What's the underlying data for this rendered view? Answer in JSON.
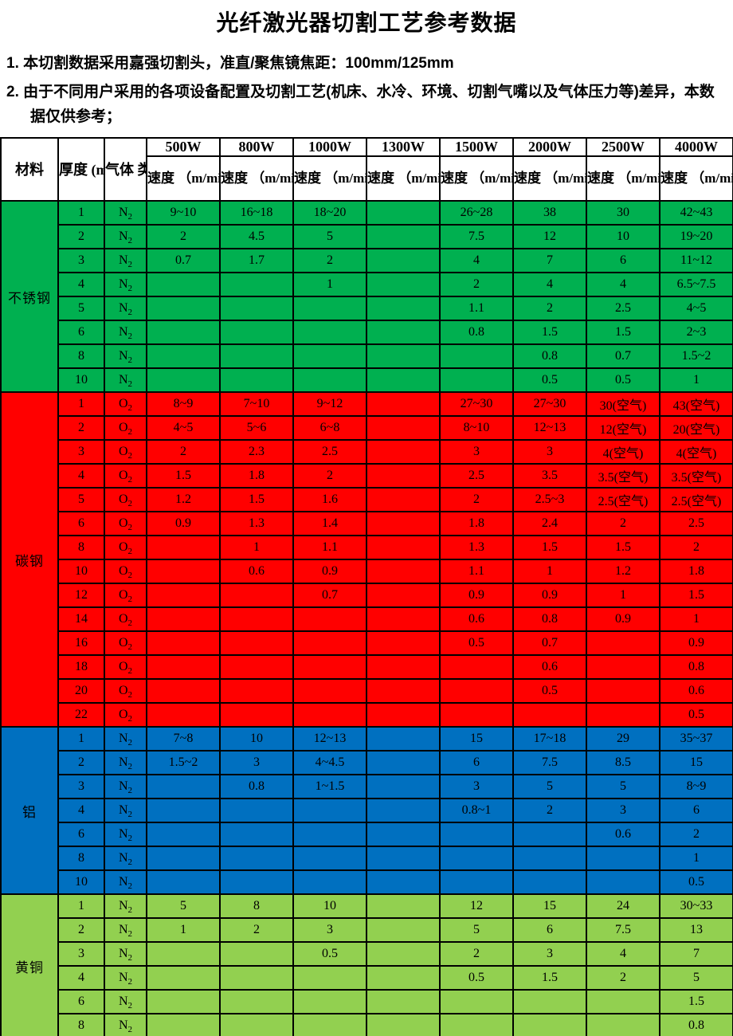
{
  "title": "光纤激光器切割工艺参考数据",
  "notes": [
    "1. 本切割数据采用嘉强切割头，准直/聚焦镜焦距：100mm/125mm",
    "2. 由于不同用户采用的各项设备配置及切割工艺(机床、水冷、环境、切割气嘴以及气体压力等)差异，本数据仅供参考；"
  ],
  "table": {
    "header": {
      "material": "材料",
      "thickness": "厚度\n(mm)",
      "gas": "气体\n类型",
      "powers": [
        "500W",
        "800W",
        "1000W",
        "1300W",
        "1500W",
        "2000W",
        "2500W",
        "4000W"
      ],
      "speed_label": "速度\n（m/min)"
    },
    "sections": [
      {
        "material": "不锈钢",
        "color": "#00B050",
        "rows": [
          {
            "t": "1",
            "g": "N2",
            "v": [
              "9~10",
              "16~18",
              "18~20",
              "",
              "26~28",
              "38",
              "30",
              "42~43"
            ]
          },
          {
            "t": "2",
            "g": "N2",
            "v": [
              "2",
              "4.5",
              "5",
              "",
              "7.5",
              "12",
              "10",
              "19~20"
            ]
          },
          {
            "t": "3",
            "g": "N2",
            "v": [
              "0.7",
              "1.7",
              "2",
              "",
              "4",
              "7",
              "6",
              "11~12"
            ]
          },
          {
            "t": "4",
            "g": "N2",
            "v": [
              "",
              "",
              "1",
              "",
              "2",
              "4",
              "4",
              "6.5~7.5"
            ]
          },
          {
            "t": "5",
            "g": "N2",
            "v": [
              "",
              "",
              "",
              "",
              "1.1",
              "2",
              "2.5",
              "4~5"
            ]
          },
          {
            "t": "6",
            "g": "N2",
            "v": [
              "",
              "",
              "",
              "",
              "0.8",
              "1.5",
              "1.5",
              "2~3"
            ]
          },
          {
            "t": "8",
            "g": "N2",
            "v": [
              "",
              "",
              "",
              "",
              "",
              "0.8",
              "0.7",
              "1.5~2"
            ]
          },
          {
            "t": "10",
            "g": "N2",
            "v": [
              "",
              "",
              "",
              "",
              "",
              "0.5",
              "0.5",
              "1"
            ]
          }
        ]
      },
      {
        "material": "碳钢",
        "color": "#FF0000",
        "rows": [
          {
            "t": "1",
            "g": "O2",
            "v": [
              "8~9",
              "7~10",
              "9~12",
              "",
              "27~30",
              "27~30",
              "30(空气)",
              "43(空气)"
            ]
          },
          {
            "t": "2",
            "g": "O2",
            "v": [
              "4~5",
              "5~6",
              "6~8",
              "",
              "8~10",
              "12~13",
              "12(空气)",
              "20(空气)"
            ]
          },
          {
            "t": "3",
            "g": "O2",
            "v": [
              "2",
              "2.3",
              "2.5",
              "",
              "3",
              "3",
              "4(空气)",
              "4(空气)"
            ]
          },
          {
            "t": "4",
            "g": "O2",
            "v": [
              "1.5",
              "1.8",
              "2",
              "",
              "2.5",
              "3.5",
              "3.5(空气)",
              "3.5(空气)"
            ]
          },
          {
            "t": "5",
            "g": "O2",
            "v": [
              "1.2",
              "1.5",
              "1.6",
              "",
              "2",
              "2.5~3",
              "2.5(空气)",
              "2.5(空气)"
            ]
          },
          {
            "t": "6",
            "g": "O2",
            "v": [
              "0.9",
              "1.3",
              "1.4",
              "",
              "1.8",
              "2.4",
              "2",
              "2.5"
            ]
          },
          {
            "t": "8",
            "g": "O2",
            "v": [
              "",
              "1",
              "1.1",
              "",
              "1.3",
              "1.5",
              "1.5",
              "2"
            ]
          },
          {
            "t": "10",
            "g": "O2",
            "v": [
              "",
              "0.6",
              "0.9",
              "",
              "1.1",
              "1",
              "1.2",
              "1.8"
            ]
          },
          {
            "t": "12",
            "g": "O2",
            "v": [
              "",
              "",
              "0.7",
              "",
              "0.9",
              "0.9",
              "1",
              "1.5"
            ]
          },
          {
            "t": "14",
            "g": "O2",
            "v": [
              "",
              "",
              "",
              "",
              "0.6",
              "0.8",
              "0.9",
              "1"
            ]
          },
          {
            "t": "16",
            "g": "O2",
            "v": [
              "",
              "",
              "",
              "",
              "0.5",
              "0.7",
              "",
              "0.9"
            ]
          },
          {
            "t": "18",
            "g": "O2",
            "v": [
              "",
              "",
              "",
              "",
              "",
              "0.6",
              "",
              "0.8"
            ]
          },
          {
            "t": "20",
            "g": "O2",
            "v": [
              "",
              "",
              "",
              "",
              "",
              "0.5",
              "",
              "0.6"
            ]
          },
          {
            "t": "22",
            "g": "O2",
            "v": [
              "",
              "",
              "",
              "",
              "",
              "",
              "",
              "0.5"
            ]
          }
        ]
      },
      {
        "material": "铝",
        "color": "#0070C0",
        "rows": [
          {
            "t": "1",
            "g": "N2",
            "v": [
              "7~8",
              "10",
              "12~13",
              "",
              "15",
              "17~18",
              "29",
              "35~37"
            ]
          },
          {
            "t": "2",
            "g": "N2",
            "v": [
              "1.5~2",
              "3",
              "4~4.5",
              "",
              "6",
              "7.5",
              "8.5",
              "15"
            ]
          },
          {
            "t": "3",
            "g": "N2",
            "v": [
              "",
              "0.8",
              "1~1.5",
              "",
              "3",
              "5",
              "5",
              "8~9"
            ]
          },
          {
            "t": "4",
            "g": "N2",
            "v": [
              "",
              "",
              "",
              "",
              "0.8~1",
              "2",
              "3",
              "6"
            ]
          },
          {
            "t": "6",
            "g": "N2",
            "v": [
              "",
              "",
              "",
              "",
              "",
              "",
              "0.6",
              "2"
            ]
          },
          {
            "t": "8",
            "g": "N2",
            "v": [
              "",
              "",
              "",
              "",
              "",
              "",
              "",
              "1"
            ]
          },
          {
            "t": "10",
            "g": "N2",
            "v": [
              "",
              "",
              "",
              "",
              "",
              "",
              "",
              "0.5"
            ]
          }
        ]
      },
      {
        "material": "黄铜",
        "color": "#92D050",
        "rows": [
          {
            "t": "1",
            "g": "N2",
            "v": [
              "5",
              "8",
              "10",
              "",
              "12",
              "15",
              "24",
              "30~33"
            ]
          },
          {
            "t": "2",
            "g": "N2",
            "v": [
              "1",
              "2",
              "3",
              "",
              "5",
              "6",
              "7.5",
              "13"
            ]
          },
          {
            "t": "3",
            "g": "N2",
            "v": [
              "",
              "",
              "0.5",
              "",
              "2",
              "3",
              "4",
              "7"
            ]
          },
          {
            "t": "4",
            "g": "N2",
            "v": [
              "",
              "",
              "",
              "",
              "0.5",
              "1.5",
              "2",
              "5"
            ]
          },
          {
            "t": "6",
            "g": "N2",
            "v": [
              "",
              "",
              "",
              "",
              "",
              "",
              "",
              "1.5"
            ]
          },
          {
            "t": "8",
            "g": "N2",
            "v": [
              "",
              "",
              "",
              "",
              "",
              "",
              "",
              "0.8"
            ]
          }
        ]
      }
    ]
  }
}
